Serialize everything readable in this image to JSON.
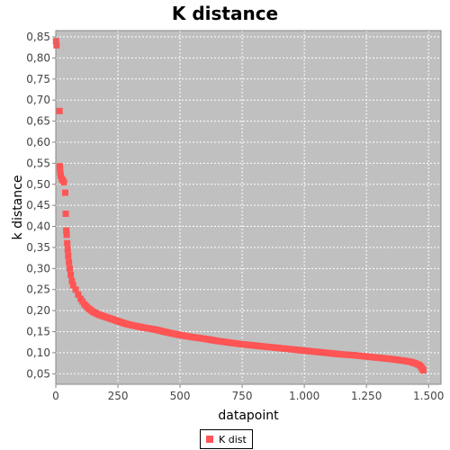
{
  "chart_data": {
    "type": "scatter",
    "title": "K distance",
    "xlabel": "datapoint",
    "ylabel": "k distance",
    "xlim": [
      0,
      1550
    ],
    "ylim": [
      0.025,
      0.865
    ],
    "x_ticks": [
      0,
      250,
      500,
      750,
      1000,
      1250,
      1500
    ],
    "x_tick_labels": [
      "0",
      "250",
      "500",
      "750",
      "1.000",
      "1.250",
      "1.500"
    ],
    "y_ticks": [
      0.05,
      0.1,
      0.15,
      0.2,
      0.25,
      0.3,
      0.35,
      0.4,
      0.45,
      0.5,
      0.55,
      0.6,
      0.65,
      0.7,
      0.75,
      0.8,
      0.85
    ],
    "y_tick_labels": [
      "0,05",
      "0,10",
      "0,15",
      "0,20",
      "0,25",
      "0,30",
      "0,35",
      "0,40",
      "0,45",
      "0,50",
      "0,55",
      "0,60",
      "0,65",
      "0,70",
      "0,75",
      "0,80",
      "0,85"
    ],
    "grid": true,
    "legend_position": "bottom-center",
    "series": [
      {
        "name": "K dist",
        "color": "#ff5555",
        "points": [
          [
            1,
            0.84
          ],
          [
            3,
            0.83
          ],
          [
            15,
            0.674
          ],
          [
            16,
            0.543
          ],
          [
            17,
            0.537
          ],
          [
            18,
            0.528
          ],
          [
            20,
            0.52
          ],
          [
            24,
            0.513
          ],
          [
            28,
            0.509
          ],
          [
            33,
            0.505
          ],
          [
            38,
            0.48
          ],
          [
            40,
            0.43
          ],
          [
            42,
            0.39
          ],
          [
            44,
            0.38
          ],
          [
            46,
            0.36
          ],
          [
            48,
            0.345
          ],
          [
            50,
            0.33
          ],
          [
            53,
            0.315
          ],
          [
            56,
            0.3
          ],
          [
            60,
            0.285
          ],
          [
            65,
            0.27
          ],
          [
            70,
            0.26
          ],
          [
            80,
            0.25
          ],
          [
            90,
            0.238
          ],
          [
            100,
            0.228
          ],
          [
            115,
            0.215
          ],
          [
            130,
            0.206
          ],
          [
            150,
            0.197
          ],
          [
            175,
            0.19
          ],
          [
            200,
            0.185
          ],
          [
            225,
            0.18
          ],
          [
            250,
            0.175
          ],
          [
            275,
            0.17
          ],
          [
            300,
            0.166
          ],
          [
            350,
            0.16
          ],
          [
            400,
            0.155
          ],
          [
            450,
            0.148
          ],
          [
            500,
            0.142
          ],
          [
            550,
            0.137
          ],
          [
            600,
            0.133
          ],
          [
            650,
            0.128
          ],
          [
            700,
            0.124
          ],
          [
            750,
            0.12
          ],
          [
            800,
            0.117
          ],
          [
            850,
            0.114
          ],
          [
            900,
            0.111
          ],
          [
            950,
            0.108
          ],
          [
            1000,
            0.105
          ],
          [
            1050,
            0.102
          ],
          [
            1100,
            0.099
          ],
          [
            1150,
            0.096
          ],
          [
            1200,
            0.094
          ],
          [
            1250,
            0.091
          ],
          [
            1300,
            0.088
          ],
          [
            1350,
            0.085
          ],
          [
            1400,
            0.081
          ],
          [
            1430,
            0.078
          ],
          [
            1450,
            0.074
          ],
          [
            1465,
            0.07
          ],
          [
            1470,
            0.066
          ],
          [
            1474,
            0.063
          ],
          [
            1477,
            0.06
          ],
          [
            1479,
            0.058
          ]
        ]
      }
    ]
  }
}
